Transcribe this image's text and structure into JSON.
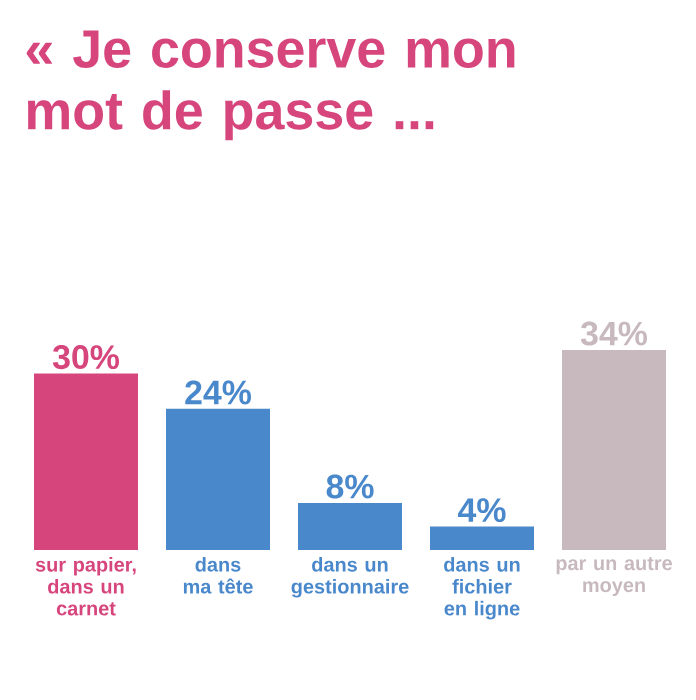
{
  "chart_data": {
    "type": "bar",
    "title": "« Je conserve mon mot de passe ...",
    "categories": [
      "sur papier, dans un carnet",
      "dans ma tête",
      "dans un gestionnaire",
      "dans un fichier en ligne",
      "par un autre moyen"
    ],
    "values": [
      30,
      24,
      8,
      4,
      34
    ],
    "value_labels": [
      "30%",
      "24%",
      "8%",
      "4%",
      "34%"
    ],
    "colors": [
      "#d6467c",
      "#4a88cc",
      "#4a88cc",
      "#4a88cc",
      "#c7b9bd"
    ]
  }
}
